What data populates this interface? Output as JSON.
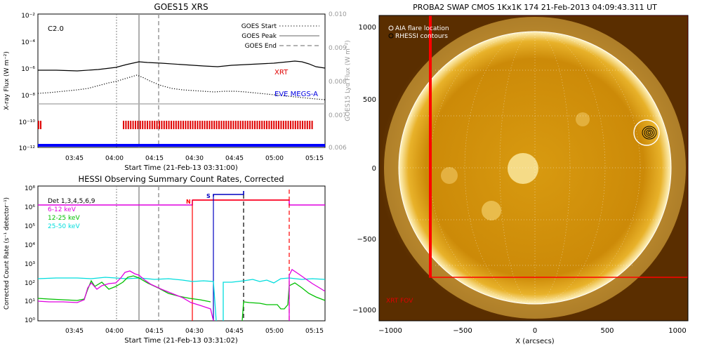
{
  "goes": {
    "title": "GOES15 XRS",
    "xlabel": "Start Time (21-Feb-13 03:31:00)",
    "ylabel_left": "X-ray Flux (W m⁻²)",
    "ylabel_right": "GOES15 Lyα Flux (W m⁻²)",
    "class_label": "C2.0",
    "legend": [
      "GOES Start",
      "GOES Peak",
      "GOES End"
    ],
    "xrt_label": "XRT",
    "eve_label": "EVE MEGS-A",
    "yticks_left": [
      "10⁻²",
      "10⁻⁴",
      "10⁻⁶",
      "10⁻⁸",
      "10⁻¹⁰",
      "10⁻¹²"
    ],
    "yticks_right": [
      "0.010",
      "0.009",
      "0.008",
      "0.007",
      "0.006"
    ],
    "xticks": [
      "03:45",
      "04:00",
      "04:15",
      "04:30",
      "04:45",
      "05:00",
      "05:15"
    ]
  },
  "hessi": {
    "title": "HESSI Observing Summary Count Rates, Corrected",
    "xlabel": "Start Time (21-Feb-13 03:31:02)",
    "ylabel": "Corrected Count Rate (s⁻¹ detector⁻¹)",
    "legend": [
      "Det 1,3,4,5,6,9",
      "6-12 keV",
      "12-25 keV",
      "25-50 keV"
    ],
    "legend_colors": [
      "#000000",
      "#e000e0",
      "#00c000",
      "#00dddd"
    ],
    "marker_n": "N",
    "marker_s": "S",
    "yticks": [
      "10⁸",
      "10⁶",
      "10⁵",
      "10⁴",
      "10³",
      "10²",
      "10¹",
      "10⁰",
      "10⁻¹"
    ],
    "xticks": [
      "03:45",
      "04:00",
      "04:15",
      "04:30",
      "04:45",
      "05:00",
      "05:15"
    ]
  },
  "swap": {
    "title": "PROBA2 SWAP CMOS 1Kx1K 174 21-Feb-2013 04:09:43.311 UT",
    "legend": [
      "AIA flare location",
      "RHESSI contours"
    ],
    "fov_label": "XRT FOV",
    "xlabel": "X (arcsecs)",
    "xticks": [
      "−1000",
      "−500",
      "0",
      "500",
      "1000"
    ],
    "yticks": [
      "1000",
      "500",
      "0",
      "−500",
      "−1000"
    ]
  },
  "chart_data": [
    {
      "type": "line",
      "title": "GOES15 XRS",
      "xlabel": "Start Time (21-Feb-13 03:31:00)",
      "ylabel": "X-ray Flux (W m⁻²)",
      "y_scale": "log",
      "ylim": [
        1e-12,
        0.01
      ],
      "y2label": "GOES15 Lyα Flux (W m⁻²)",
      "y2lim": [
        0.006,
        0.01
      ],
      "xlim": [
        "03:31",
        "05:18"
      ],
      "x": [
        "03:31",
        "03:45",
        "03:55",
        "04:00",
        "04:05",
        "04:09",
        "04:15",
        "04:25",
        "04:35",
        "04:45",
        "04:55",
        "05:00",
        "05:05",
        "05:10",
        "05:18"
      ],
      "series": [
        {
          "values": [
            7e-07,
            7e-07,
            8e-07,
            1.1e-06,
            1.5e-06,
            2e-06,
            1.7e-06,
            1.4e-06,
            1.2e-06,
            1.3e-06,
            1.6e-06,
            1.8e-06,
            1.4e-06,
            1e-06,
            8e-07
          ]
        },
        {
          "values": [
            9e-09,
            1.2e-08,
            2.2e-08,
            8e-08,
            2.5e-07,
            3.8e-07,
            2.8e-07,
            1.8e-07,
            1.1e-07,
            6e-08,
            3e-08,
            1.5e-08,
            1.1e-08,
            9e-09,
            7e-09
          ]
        },
        {
          "values": [
            1.5e-09,
            1.5e-09,
            1.6e-09,
            1.7e-09,
            1.7e-09,
            1.8e-09,
            1.7e-09,
            1.6e-09,
            1.6e-09,
            1.6e-09,
            1.6e-09,
            1.6e-09,
            1.6e-09,
            1.6e-09,
            1.6e-09
          ]
        }
      ],
      "goes_start": "04:01",
      "goes_peak": "04:09",
      "goes_end": "04:16"
    },
    {
      "type": "line",
      "title": "HESSI Observing Summary Count Rates, Corrected",
      "xlabel": "Start Time (21-Feb-13 03:31:02)",
      "ylabel": "Corrected Count Rate (s⁻¹ detector⁻¹)",
      "y_scale": "log",
      "ylim": [
        0.1,
        1000000.0
      ],
      "xlim": [
        "03:31",
        "05:18"
      ],
      "x": [
        "03:31",
        "03:45",
        "03:50",
        "03:55",
        "04:00",
        "04:05",
        "04:10",
        "04:15",
        "04:20",
        "04:25",
        "04:30",
        "04:36",
        "04:44",
        "04:52",
        "05:00",
        "05:05",
        "05:10",
        "05:18"
      ],
      "series": [
        {
          "name": "6-12 keV",
          "values": [
            1.0,
            1.2,
            8,
            30,
            18,
            12,
            8,
            5,
            3,
            2,
            0.5,
            0.1,
            0.1,
            0.1,
            0.1,
            30,
            15,
            3
          ]
        },
        {
          "name": "12-25 keV",
          "values": [
            1.2,
            1.0,
            5,
            7,
            15,
            10,
            6,
            3,
            2,
            1.5,
            0.6,
            0.1,
            0.1,
            0.5,
            0.2,
            10,
            8,
            1.5
          ]
        },
        {
          "name": "25-50 keV",
          "values": [
            15,
            14,
            14,
            16,
            17,
            16,
            15,
            15,
            14,
            14,
            13,
            0.1,
            15,
            16,
            15,
            14,
            14,
            13
          ]
        }
      ],
      "night_start": "04:29",
      "night_end": "05:07",
      "saa": [
        "04:37",
        "04:49"
      ]
    },
    {
      "type": "image",
      "title": "PROBA2 SWAP CMOS 1Kx1K 174 21-Feb-2013 04:09:43.311 UT",
      "xlabel": "X (arcsecs)",
      "xlim": [
        -1100,
        1100
      ],
      "ylim": [
        -1100,
        1100
      ],
      "fov_x_arcsec": [
        -730,
        1100
      ],
      "fov_y_arcsec": [
        -770,
        1100
      ],
      "aia_flare_location": [
        810,
        240
      ],
      "solar_radius_arcsec": 970
    }
  ]
}
